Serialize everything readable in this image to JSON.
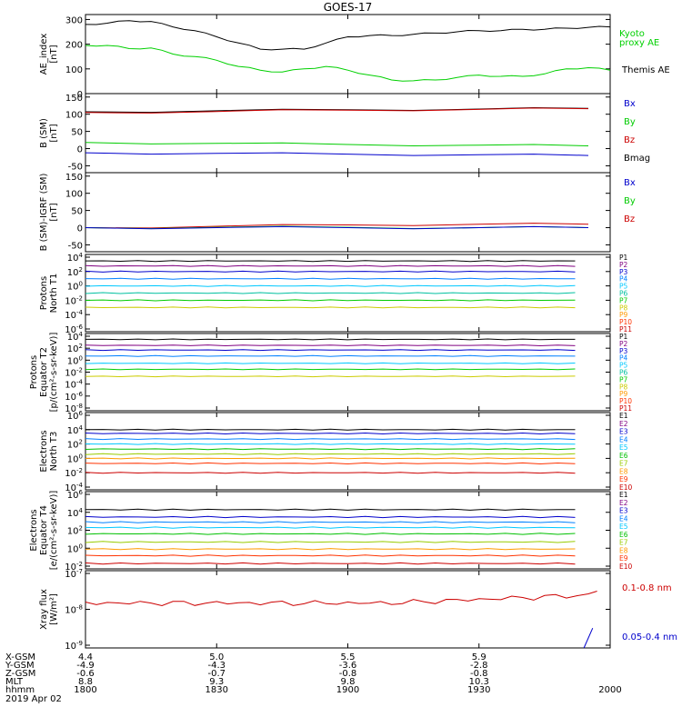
{
  "title": "GOES-17",
  "panels": [
    {
      "ylabel": [
        "AE_index",
        "[nT]"
      ],
      "yticks": [
        "0",
        "100",
        "200",
        "300"
      ],
      "legend": [
        {
          "text": "Kyoto",
          "color": "#00d000"
        },
        {
          "text": "proxy AE",
          "color": "#00d000"
        },
        {
          "text": "Themis AE",
          "color": "#000000"
        }
      ]
    },
    {
      "ylabel": [
        "B (SM)",
        "[nT]"
      ],
      "yticks": [
        "-50",
        "0",
        "50",
        "100",
        "150"
      ],
      "legend": [
        {
          "text": "Bx",
          "color": "#0000cc"
        },
        {
          "text": "By",
          "color": "#00cc00"
        },
        {
          "text": "Bz",
          "color": "#cc0000"
        },
        {
          "text": "Bmag",
          "color": "#000000"
        }
      ]
    },
    {
      "ylabel": [
        "B (SM)-IGRF (SM)",
        "[nT]"
      ],
      "yticks": [
        "-50",
        "0",
        "50",
        "100",
        "150"
      ],
      "legend": [
        {
          "text": "Bx",
          "color": "#0000cc"
        },
        {
          "text": "By",
          "color": "#00cc00"
        },
        {
          "text": "Bz",
          "color": "#cc0000"
        }
      ]
    },
    {
      "ylabel": [
        "Protons",
        "North T1"
      ],
      "yticks": [
        "10^4",
        "10^2",
        "10^0",
        "10^-2",
        "10^-4",
        "10^-6"
      ],
      "legend": [
        {
          "text": "P1",
          "color": "#000000"
        },
        {
          "text": "P2",
          "color": "#800080"
        },
        {
          "text": "P3",
          "color": "#0000cc"
        },
        {
          "text": "P4",
          "color": "#0080ff"
        },
        {
          "text": "P5",
          "color": "#00c8ff"
        },
        {
          "text": "P6",
          "color": "#00c0a0"
        },
        {
          "text": "P7",
          "color": "#00cc00"
        },
        {
          "text": "P8",
          "color": "#cccc00"
        },
        {
          "text": "P9",
          "color": "#ff9900"
        },
        {
          "text": "P10",
          "color": "#ff3300"
        },
        {
          "text": "P11",
          "color": "#cc0000"
        }
      ]
    },
    {
      "ylabel": [
        "Protons",
        "Equator T2",
        "[p/(cm²-s-sr-keV)]"
      ],
      "yticks": [
        "10^4",
        "10^2",
        "10^0",
        "10^-2",
        "10^-4",
        "10^-6",
        "10^-8"
      ],
      "legend": [
        {
          "text": "P1",
          "color": "#000000"
        },
        {
          "text": "P2",
          "color": "#800080"
        },
        {
          "text": "P3",
          "color": "#0000cc"
        },
        {
          "text": "P4",
          "color": "#0080ff"
        },
        {
          "text": "P5",
          "color": "#00c8ff"
        },
        {
          "text": "P6",
          "color": "#00c0a0"
        },
        {
          "text": "P7",
          "color": "#00cc00"
        },
        {
          "text": "P8",
          "color": "#cccc00"
        },
        {
          "text": "P9",
          "color": "#ff9900"
        },
        {
          "text": "P10",
          "color": "#ff3300"
        },
        {
          "text": "P11",
          "color": "#cc0000"
        }
      ]
    },
    {
      "ylabel": [
        "Electrons",
        "North T3"
      ],
      "yticks": [
        "10^6",
        "10^4",
        "10^2",
        "10^0",
        "10^-2",
        "10^-4"
      ],
      "legend": [
        {
          "text": "E1",
          "color": "#000000"
        },
        {
          "text": "E2",
          "color": "#800080"
        },
        {
          "text": "E3",
          "color": "#0000cc"
        },
        {
          "text": "E4",
          "color": "#0080ff"
        },
        {
          "text": "E5",
          "color": "#00c8ff"
        },
        {
          "text": "E6",
          "color": "#00c000"
        },
        {
          "text": "E7",
          "color": "#99cc00"
        },
        {
          "text": "E8",
          "color": "#ff9900"
        },
        {
          "text": "E9",
          "color": "#ff3300"
        },
        {
          "text": "E10",
          "color": "#cc0000"
        }
      ]
    },
    {
      "ylabel": [
        "Electrons",
        "Equator T4",
        "[e/(cm²-s-sr-keV)]"
      ],
      "yticks": [
        "10^6",
        "10^4",
        "10^2",
        "10^0",
        "10^-2"
      ],
      "legend": [
        {
          "text": "E1",
          "color": "#000000"
        },
        {
          "text": "E2",
          "color": "#800080"
        },
        {
          "text": "E3",
          "color": "#0000cc"
        },
        {
          "text": "E4",
          "color": "#0080ff"
        },
        {
          "text": "E5",
          "color": "#00c8ff"
        },
        {
          "text": "E6",
          "color": "#00c000"
        },
        {
          "text": "E7",
          "color": "#99cc00"
        },
        {
          "text": "E8",
          "color": "#ff9900"
        },
        {
          "text": "E9",
          "color": "#ff3300"
        },
        {
          "text": "E10",
          "color": "#cc0000"
        }
      ]
    },
    {
      "ylabel": [
        "Xray flux",
        "[W/m²]"
      ],
      "yticks": [
        "10^-7",
        "10^-8",
        "10^-9"
      ],
      "legend": [
        {
          "text": "0.1-0.8 nm",
          "color": "#cc0000"
        },
        {
          "text": "0.05-0.4 nm",
          "color": "#0000cc"
        }
      ]
    }
  ],
  "xaxis": {
    "ticks": [
      "1800",
      "1830",
      "1900",
      "1930",
      "2000"
    ],
    "rows": [
      {
        "label": "X-GSM",
        "values": [
          "4.4",
          "5.0",
          "5.5",
          "5.9"
        ]
      },
      {
        "label": "Y-GSM",
        "values": [
          "-4.9",
          "-4.3",
          "-3.6",
          "-2.8"
        ]
      },
      {
        "label": "Z-GSM",
        "values": [
          "-0.6",
          "-0.7",
          "-0.8",
          "-0.8"
        ]
      },
      {
        "label": "MLT",
        "values": [
          "8.8",
          "9.3",
          "9.8",
          "10.3"
        ]
      },
      {
        "label": "hhmm",
        "values": [
          "1800",
          "1830",
          "1900",
          "1930"
        ]
      }
    ],
    "date": "2019 Apr 02"
  },
  "chart_data": {
    "type": "line",
    "title": "GOES-17",
    "x_range": [
      "18:00",
      "20:00"
    ],
    "x_ticks": [
      "1800",
      "1830",
      "1900",
      "1930",
      "2000"
    ],
    "panels": [
      {
        "ylabel": "AE_index [nT]",
        "ylim": [
          0,
          320
        ],
        "scale": "linear",
        "x": [
          0,
          5,
          10,
          15,
          20,
          25,
          30,
          35,
          40,
          45,
          50,
          55,
          60,
          65,
          70,
          75,
          80,
          85,
          90,
          95,
          100,
          105,
          110,
          115,
          120
        ],
        "series": [
          {
            "name": "Themis AE",
            "color": "#000000",
            "values": [
              280,
              285,
              295,
              292,
              270,
              255,
              230,
              205,
              180,
              180,
              180,
              205,
              230,
              235,
              235,
              240,
              245,
              250,
              255,
              255,
              260,
              260,
              265,
              268,
              270
            ]
          },
          {
            "name": "Kyoto proxy AE",
            "color": "#00d000",
            "values": [
              195,
              195,
              182,
              185,
              160,
              150,
              135,
              110,
              95,
              87,
              100,
              110,
              95,
              75,
              55,
              52,
              55,
              65,
              75,
              70,
              70,
              80,
              100,
              105,
              95
            ]
          }
        ]
      },
      {
        "ylabel": "B (SM) [nT]",
        "ylim": [
          -70,
          160
        ],
        "scale": "linear",
        "x": [
          0,
          30,
          60,
          90,
          115
        ],
        "series": [
          {
            "name": "Bmag",
            "color": "#000000",
            "values": [
              107,
              110,
              113,
              115,
              117
            ]
          },
          {
            "name": "Bz",
            "color": "#cc0000",
            "values": [
              105,
              108,
              112,
              114,
              116
            ]
          },
          {
            "name": "By",
            "color": "#00cc00",
            "values": [
              18,
              15,
              12,
              10,
              8
            ]
          },
          {
            "name": "Bx",
            "color": "#0000cc",
            "values": [
              -12,
              -14,
              -16,
              -18,
              -20
            ]
          }
        ]
      },
      {
        "ylabel": "B (SM)-IGRF (SM) [nT]",
        "ylim": [
          -70,
          160
        ],
        "scale": "linear",
        "x": [
          0,
          30,
          60,
          90,
          115
        ],
        "series": [
          {
            "name": "Bz",
            "color": "#cc0000",
            "values": [
              0,
              4,
              8,
              10,
              10
            ]
          },
          {
            "name": "By",
            "color": "#00cc00",
            "values": [
              0,
              1,
              1,
              0,
              0
            ]
          },
          {
            "name": "Bx",
            "color": "#0000cc",
            "values": [
              0,
              0,
              0,
              0,
              0
            ]
          }
        ]
      },
      {
        "ylabel": "Protons North T1",
        "ylim": [
          "1e-6",
          "1e4"
        ],
        "scale": "log",
        "series": [
          {
            "name": "P1",
            "color": "#000000",
            "values": [
              3000,
              3000
            ]
          },
          {
            "name": "P2",
            "color": "#800080",
            "values": [
              600,
              600
            ]
          },
          {
            "name": "P3",
            "color": "#0000cc",
            "values": [
              100,
              100
            ]
          },
          {
            "name": "P4",
            "color": "#0080ff",
            "values": [
              10,
              10
            ]
          },
          {
            "name": "P5",
            "color": "#00c8ff",
            "values": [
              1,
              1
            ]
          },
          {
            "name": "P6",
            "color": "#00c0a0",
            "values": [
              0.1,
              0.1
            ]
          },
          {
            "name": "P7",
            "color": "#00cc00",
            "values": [
              0.01,
              0.01
            ]
          },
          {
            "name": "P8",
            "color": "#cccc00",
            "values": [
              0.001,
              0.001
            ]
          }
        ]
      },
      {
        "ylabel": "Protons Equator T2 [p/(cm²-s-sr-keV)]",
        "ylim": [
          "1e-8",
          "1e4"
        ],
        "scale": "log",
        "series": [
          {
            "name": "P1",
            "color": "#000000",
            "values": [
              3000,
              3000
            ]
          },
          {
            "name": "P2",
            "color": "#800080",
            "values": [
              300,
              300
            ]
          },
          {
            "name": "P3",
            "color": "#0000cc",
            "values": [
              50,
              50
            ]
          },
          {
            "name": "P4",
            "color": "#0080ff",
            "values": [
              5,
              5
            ]
          },
          {
            "name": "P5",
            "color": "#00c8ff",
            "values": [
              0.3,
              0.3
            ]
          },
          {
            "name": "P6",
            "color": "#00cc00",
            "values": [
              0.03,
              0.03
            ]
          },
          {
            "name": "P7",
            "color": "#cccc00",
            "values": [
              0.002,
              0.002
            ]
          }
        ]
      },
      {
        "ylabel": "Electrons North T3",
        "ylim": [
          "1e-4",
          "1e6"
        ],
        "scale": "log",
        "series": [
          {
            "name": "E1",
            "color": "#000000",
            "values": [
              10000,
              10000
            ]
          },
          {
            "name": "E3",
            "color": "#0000cc",
            "values": [
              3000,
              3000
            ]
          },
          {
            "name": "E4",
            "color": "#0080ff",
            "values": [
              500,
              500
            ]
          },
          {
            "name": "E5",
            "color": "#00c8ff",
            "values": [
              100,
              100
            ]
          },
          {
            "name": "E6",
            "color": "#00c000",
            "values": [
              20,
              20
            ]
          },
          {
            "name": "E7",
            "color": "#99cc00",
            "values": [
              4,
              4
            ]
          },
          {
            "name": "E8",
            "color": "#ff9900",
            "values": [
              1,
              1
            ]
          },
          {
            "name": "E9",
            "color": "#ff3300",
            "values": [
              0.2,
              0.2
            ]
          },
          {
            "name": "E10",
            "color": "#cc0000",
            "values": [
              0.01,
              0.01
            ]
          }
        ]
      },
      {
        "ylabel": "Electrons Equator T4 [e/(cm²-s-sr-keV)]",
        "ylim": [
          "1e-2",
          "1e6"
        ],
        "scale": "log",
        "series": [
          {
            "name": "E1",
            "color": "#000000",
            "values": [
              20000,
              20000
            ]
          },
          {
            "name": "E3",
            "color": "#0000cc",
            "values": [
              3000,
              3000
            ]
          },
          {
            "name": "E4",
            "color": "#0080ff",
            "values": [
              800,
              800
            ]
          },
          {
            "name": "E5",
            "color": "#00c8ff",
            "values": [
              200,
              200
            ]
          },
          {
            "name": "E6",
            "color": "#00c000",
            "values": [
              40,
              40
            ]
          },
          {
            "name": "E7",
            "color": "#99cc00",
            "values": [
              5,
              5
            ]
          },
          {
            "name": "E8",
            "color": "#ff9900",
            "values": [
              0.8,
              0.8
            ]
          },
          {
            "name": "E9",
            "color": "#ff3300",
            "values": [
              0.15,
              0.15
            ]
          },
          {
            "name": "E10",
            "color": "#cc0000",
            "values": [
              0.02,
              0.02
            ]
          }
        ]
      },
      {
        "ylabel": "Xray flux [W/m²]",
        "ylim": [
          "1e-9",
          "1e-7"
        ],
        "scale": "log",
        "series": [
          {
            "name": "0.1-0.8 nm",
            "color": "#cc0000",
            "values": [
              "1.5e-8",
              "1.6e-8",
              "1.8e-8",
              "2.5e-8",
              "2.5e-8"
            ]
          },
          {
            "name": "0.05-0.4 nm",
            "color": "#0000cc",
            "values": [
              "1e-9",
              "3e-9"
            ]
          }
        ]
      }
    ]
  }
}
